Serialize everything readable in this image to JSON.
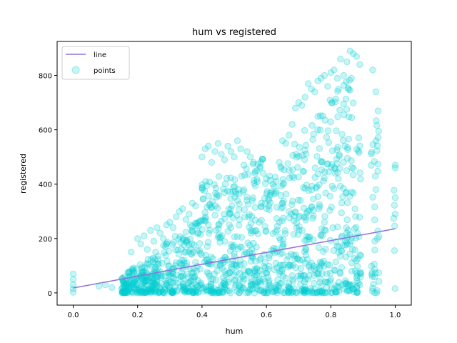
{
  "chart_data": {
    "type": "scatter",
    "title": "hum vs registered",
    "xlabel": "hum",
    "ylabel": "registered",
    "xlim": [
      -0.05,
      1.05
    ],
    "ylim": [
      -45,
      925
    ],
    "xticks": [
      0.0,
      0.2,
      0.4,
      0.6,
      0.8,
      1.0
    ],
    "xtick_labels": [
      "0.0",
      "0.2",
      "0.4",
      "0.6",
      "0.8",
      "1.0"
    ],
    "yticks": [
      0,
      200,
      400,
      600,
      800
    ],
    "ytick_labels": [
      "0",
      "200",
      "400",
      "600",
      "800"
    ],
    "grid": false,
    "legend": {
      "position": "top-left",
      "entries": [
        "line",
        "points"
      ]
    },
    "colors": {
      "line": "#9370DB",
      "points": "#00CED1"
    },
    "series": [
      {
        "name": "line",
        "type": "line",
        "x": [
          0.0,
          1.0
        ],
        "y": [
          18,
          236
        ]
      },
      {
        "name": "points",
        "type": "scatter",
        "x": [
          0.0,
          0.0,
          0.0,
          0.0,
          0.0,
          0.08,
          0.1,
          0.12,
          0.16,
          0.16,
          0.17,
          0.18,
          0.19,
          0.2,
          0.2,
          0.21,
          0.22,
          0.23,
          0.24,
          0.25,
          0.26,
          0.27,
          0.28,
          0.29,
          0.3,
          0.31,
          0.32,
          0.33,
          0.34,
          0.35,
          0.36,
          0.37,
          0.38,
          0.39,
          0.4,
          0.41,
          0.42,
          0.43,
          0.44,
          0.45,
          0.46,
          0.47,
          0.48,
          0.49,
          0.5,
          0.51,
          0.52,
          0.53,
          0.54,
          0.55,
          0.56,
          0.57,
          0.58,
          0.59,
          0.6,
          0.61,
          0.62,
          0.63,
          0.64,
          0.65,
          0.66,
          0.67,
          0.68,
          0.69,
          0.7,
          0.71,
          0.72,
          0.73,
          0.74,
          0.75,
          0.76,
          0.77,
          0.78,
          0.79,
          0.8,
          0.81,
          0.82,
          0.83,
          0.84,
          0.85,
          0.86,
          0.87,
          0.88,
          0.89,
          0.93,
          0.94,
          0.94,
          0.94,
          1.0,
          1.0,
          1.0,
          1.0
        ],
        "y": [
          70,
          50,
          30,
          15,
          2,
          25,
          30,
          20,
          60,
          5,
          75,
          150,
          40,
          200,
          10,
          180,
          210,
          160,
          230,
          190,
          240,
          220,
          200,
          250,
          260,
          240,
          280,
          300,
          310,
          270,
          290,
          330,
          320,
          260,
          500,
          530,
          540,
          480,
          520,
          550,
          510,
          490,
          540,
          520,
          500,
          560,
          530,
          470,
          520,
          500,
          480,
          450,
          460,
          440,
          420,
          430,
          400,
          410,
          480,
          560,
          550,
          580,
          620,
          680,
          700,
          690,
          720,
          770,
          750,
          740,
          780,
          790,
          800,
          760,
          810,
          820,
          790,
          860,
          800,
          850,
          890,
          880,
          870,
          840,
          820,
          740,
          560,
          380,
          470,
          460,
          350,
          290
        ]
      }
    ]
  }
}
